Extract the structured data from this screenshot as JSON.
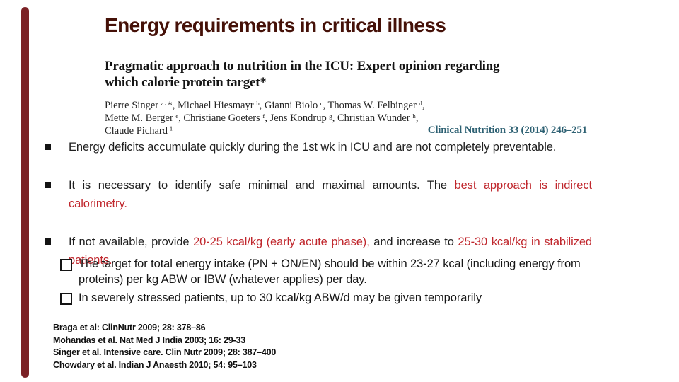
{
  "slide": {
    "title": "Energy requirements in critical illness",
    "accent_color": "#7b2125",
    "highlight_color": "#c0272d"
  },
  "paper": {
    "title_line1": "Pragmatic approach to nutrition in the ICU: Expert opinion regarding",
    "title_line2": "which calorie protein target*",
    "authors_line1": "Pierre Singer ᵃ·*, Michael Hiesmayr ᵇ, Gianni Biolo ᶜ, Thomas W. Felbinger ᵈ,",
    "authors_line2": "Mette M. Berger ᵉ, Christiane Goeters ᶠ, Jens Kondrup ᵍ, Christian Wunder ʰ,",
    "authors_line3": "Claude Pichard ⁱ",
    "journal_citation": "Clinical Nutrition 33 (2014) 246–251"
  },
  "bullets": [
    {
      "segments": [
        {
          "text": "Energy deficits accumulate quickly during the 1st wk in ICU and are not completely preventable.",
          "color": "black"
        }
      ]
    },
    {
      "segments": [
        {
          "text": "It is necessary to identify safe minimal and maximal amounts. The ",
          "color": "black"
        },
        {
          "text": "best approach is indirect calorimetry.",
          "color": "red"
        }
      ]
    },
    {
      "segments": [
        {
          "text": "If not available, provide ",
          "color": "black"
        },
        {
          "text": "20-25 kcal/kg (early acute phase),",
          "color": "red"
        },
        {
          "text": " and increase to ",
          "color": "black"
        },
        {
          "text": "25-30 kcal/kg in stabilized patients.",
          "color": "red"
        }
      ]
    }
  ],
  "checklist": [
    {
      "text": "The target for total energy intake (PN + ON/EN) should be within 23-27 kcal (including energy from proteins) per kg ABW or IBW (whatever applies) per day."
    },
    {
      "text": "In severely stressed patients, up to 30 kcal/kg ABW/d may be given temporarily"
    }
  ],
  "references": [
    "Braga et al: ClinNutr 2009; 28: 378–86",
    "Mohandas et al. Nat Med J India 2003; 16: 29-33",
    "Singer et al. Intensive care. Clin Nutr 2009; 28: 387–400",
    "Chowdary et al. Indian J Anaesth 2010; 54: 95–103"
  ]
}
